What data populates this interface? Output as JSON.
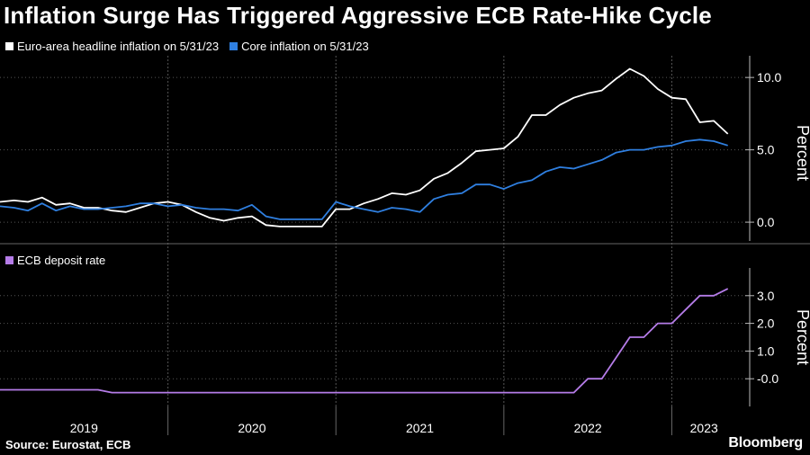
{
  "title": "Inflation Surge Has Triggered Aggressive ECB Rate-Hike Cycle",
  "source": "Source: Eurostat, ECB",
  "brand": "Bloomberg",
  "colors": {
    "headline": "#ffffff",
    "core": "#2f7fe0",
    "deposit": "#b57ce8",
    "grid": "#555555"
  },
  "chart_data": [
    {
      "type": "line",
      "ylabel": "Percent",
      "ylim": [
        -1.3,
        11.5
      ],
      "yticks": [
        "10.0",
        "5.0",
        "0.0"
      ],
      "yticks_values": [
        10,
        5,
        0
      ],
      "series": [
        {
          "name": "Euro-area headline inflation on 5/31/23",
          "x": [
            "2019-01",
            "2019-02",
            "2019-03",
            "2019-04",
            "2019-05",
            "2019-06",
            "2019-07",
            "2019-08",
            "2019-09",
            "2019-10",
            "2019-11",
            "2019-12",
            "2020-01",
            "2020-02",
            "2020-03",
            "2020-04",
            "2020-05",
            "2020-06",
            "2020-07",
            "2020-08",
            "2020-09",
            "2020-10",
            "2020-11",
            "2020-12",
            "2021-01",
            "2021-02",
            "2021-03",
            "2021-04",
            "2021-05",
            "2021-06",
            "2021-07",
            "2021-08",
            "2021-09",
            "2021-10",
            "2021-11",
            "2021-12",
            "2022-01",
            "2022-02",
            "2022-03",
            "2022-04",
            "2022-05",
            "2022-06",
            "2022-07",
            "2022-08",
            "2022-09",
            "2022-10",
            "2022-11",
            "2022-12",
            "2023-01",
            "2023-02",
            "2023-03",
            "2023-04",
            "2023-05"
          ],
          "values": [
            1.4,
            1.5,
            1.4,
            1.7,
            1.2,
            1.3,
            1.0,
            1.0,
            0.8,
            0.7,
            1.0,
            1.3,
            1.4,
            1.2,
            0.7,
            0.3,
            0.1,
            0.3,
            0.4,
            -0.2,
            -0.3,
            -0.3,
            -0.3,
            -0.3,
            0.9,
            0.9,
            1.3,
            1.6,
            2.0,
            1.9,
            2.2,
            3.0,
            3.4,
            4.1,
            4.9,
            5.0,
            5.1,
            5.9,
            7.4,
            7.4,
            8.1,
            8.6,
            8.9,
            9.1,
            9.9,
            10.6,
            10.1,
            9.2,
            8.6,
            8.5,
            6.9,
            7.0,
            6.1
          ]
        },
        {
          "name": "Core inflation on 5/31/23",
          "x": [
            "2019-01",
            "2019-02",
            "2019-03",
            "2019-04",
            "2019-05",
            "2019-06",
            "2019-07",
            "2019-08",
            "2019-09",
            "2019-10",
            "2019-11",
            "2019-12",
            "2020-01",
            "2020-02",
            "2020-03",
            "2020-04",
            "2020-05",
            "2020-06",
            "2020-07",
            "2020-08",
            "2020-09",
            "2020-10",
            "2020-11",
            "2020-12",
            "2021-01",
            "2021-02",
            "2021-03",
            "2021-04",
            "2021-05",
            "2021-06",
            "2021-07",
            "2021-08",
            "2021-09",
            "2021-10",
            "2021-11",
            "2021-12",
            "2022-01",
            "2022-02",
            "2022-03",
            "2022-04",
            "2022-05",
            "2022-06",
            "2022-07",
            "2022-08",
            "2022-09",
            "2022-10",
            "2022-11",
            "2022-12",
            "2023-01",
            "2023-02",
            "2023-03",
            "2023-04",
            "2023-05"
          ],
          "values": [
            1.1,
            1.0,
            0.8,
            1.3,
            0.8,
            1.1,
            0.9,
            0.9,
            1.0,
            1.1,
            1.3,
            1.3,
            1.1,
            1.2,
            1.0,
            0.9,
            0.9,
            0.8,
            1.2,
            0.4,
            0.2,
            0.2,
            0.2,
            0.2,
            1.4,
            1.1,
            0.9,
            0.7,
            1.0,
            0.9,
            0.7,
            1.6,
            1.9,
            2.0,
            2.6,
            2.6,
            2.3,
            2.7,
            2.9,
            3.5,
            3.8,
            3.7,
            4.0,
            4.3,
            4.8,
            5.0,
            5.0,
            5.2,
            5.3,
            5.6,
            5.7,
            5.6,
            5.3
          ]
        }
      ]
    },
    {
      "type": "line",
      "ylabel": "Percent",
      "ylim": [
        -1.0,
        4.0
      ],
      "yticks": [
        "3.0",
        "2.0",
        "1.0",
        "-0.0"
      ],
      "yticks_values": [
        3,
        2,
        1,
        0
      ],
      "series": [
        {
          "name": "ECB deposit rate",
          "x": [
            "2019-01",
            "2019-02",
            "2019-03",
            "2019-04",
            "2019-05",
            "2019-06",
            "2019-07",
            "2019-08",
            "2019-09",
            "2019-10",
            "2019-11",
            "2019-12",
            "2020-01",
            "2020-02",
            "2020-03",
            "2020-04",
            "2020-05",
            "2020-06",
            "2020-07",
            "2020-08",
            "2020-09",
            "2020-10",
            "2020-11",
            "2020-12",
            "2021-01",
            "2021-02",
            "2021-03",
            "2021-04",
            "2021-05",
            "2021-06",
            "2021-07",
            "2021-08",
            "2021-09",
            "2021-10",
            "2021-11",
            "2021-12",
            "2022-01",
            "2022-02",
            "2022-03",
            "2022-04",
            "2022-05",
            "2022-06",
            "2022-07",
            "2022-08",
            "2022-09",
            "2022-10",
            "2022-11",
            "2022-12",
            "2023-01",
            "2023-02",
            "2023-03",
            "2023-04",
            "2023-05"
          ],
          "values": [
            -0.4,
            -0.4,
            -0.4,
            -0.4,
            -0.4,
            -0.4,
            -0.4,
            -0.4,
            -0.5,
            -0.5,
            -0.5,
            -0.5,
            -0.5,
            -0.5,
            -0.5,
            -0.5,
            -0.5,
            -0.5,
            -0.5,
            -0.5,
            -0.5,
            -0.5,
            -0.5,
            -0.5,
            -0.5,
            -0.5,
            -0.5,
            -0.5,
            -0.5,
            -0.5,
            -0.5,
            -0.5,
            -0.5,
            -0.5,
            -0.5,
            -0.5,
            -0.5,
            -0.5,
            -0.5,
            -0.5,
            -0.5,
            -0.5,
            0.0,
            0.0,
            0.75,
            1.5,
            1.5,
            2.0,
            2.0,
            2.5,
            3.0,
            3.0,
            3.25
          ]
        }
      ]
    }
  ],
  "x_axis": {
    "years": [
      "2019",
      "2020",
      "2021",
      "2022",
      "2023"
    ]
  }
}
